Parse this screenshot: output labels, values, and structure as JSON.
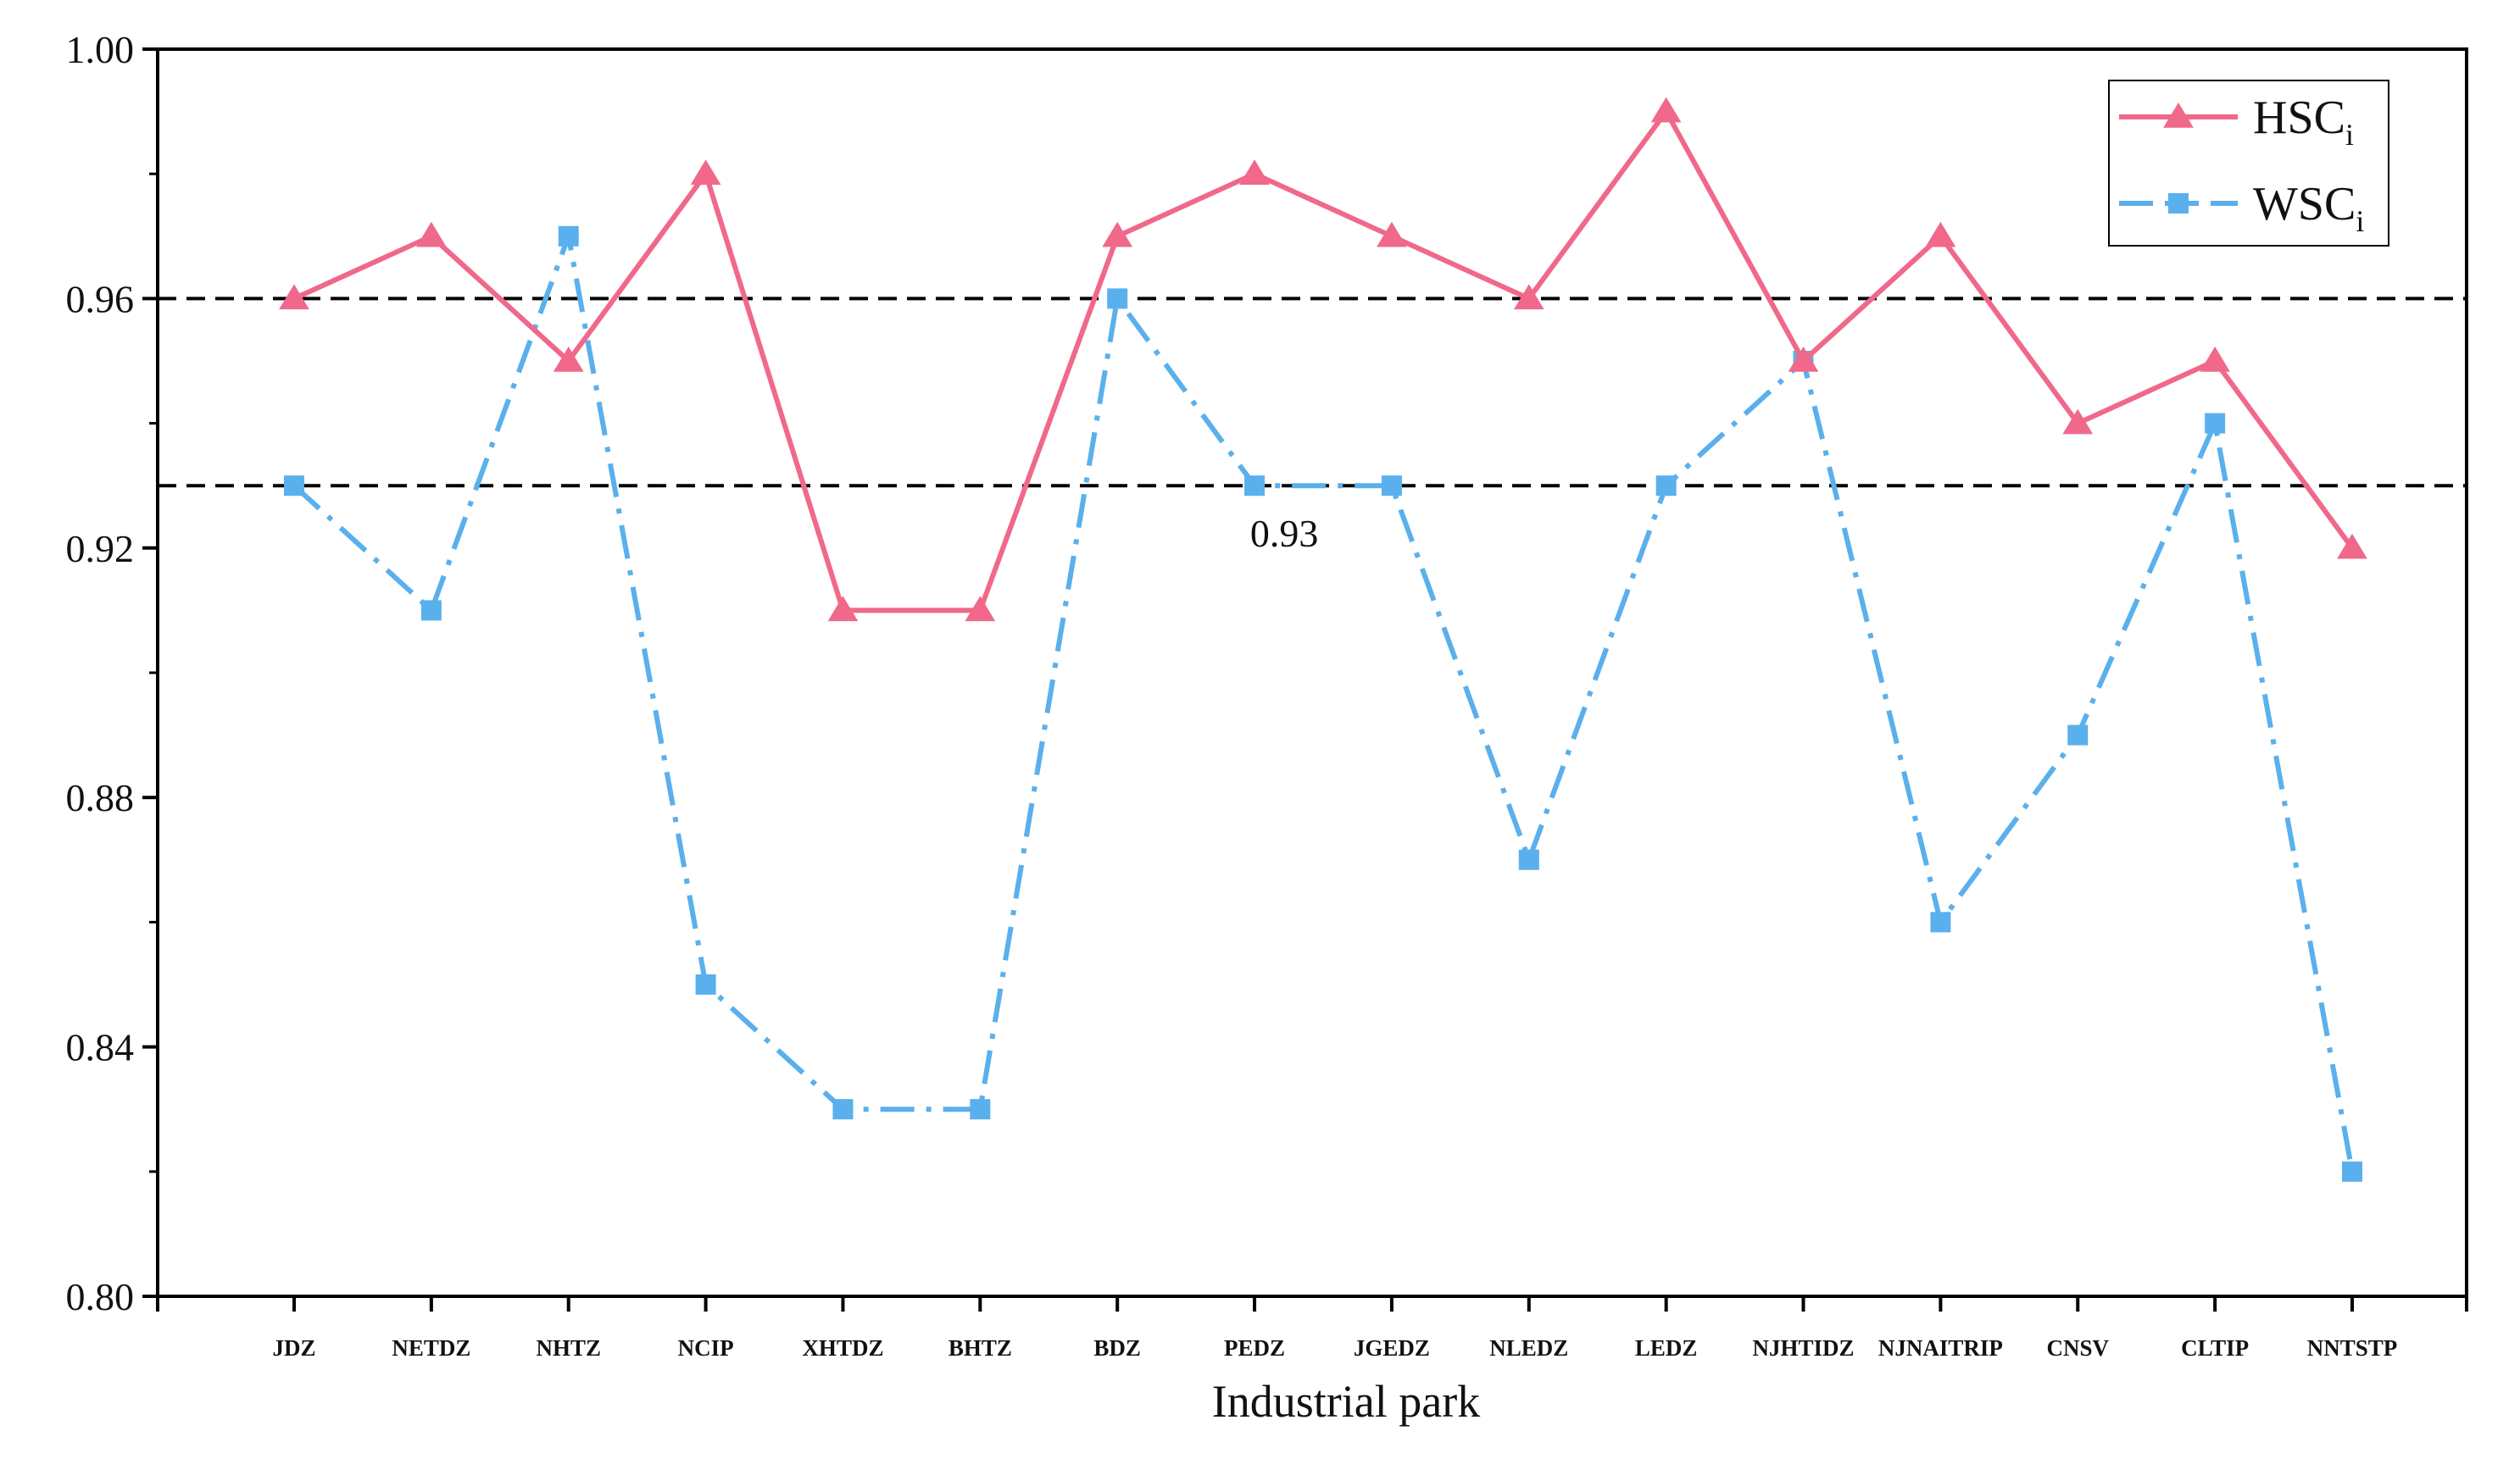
{
  "chart_data": {
    "type": "line",
    "title": "",
    "xlabel": "Industrial park",
    "ylabel": "",
    "categories": [
      "JDZ",
      "NETDZ",
      "NHTZ",
      "NCIP",
      "XHTDZ",
      "BHTZ",
      "BDZ",
      "PEDZ",
      "JGEDZ",
      "NLEDZ",
      "LEDZ",
      "NJHTIDZ",
      "NJNAITRIP",
      "CNSV",
      "CLTIP",
      "NNTSTP"
    ],
    "ylim": [
      0.8,
      1.0
    ],
    "yticks": [
      0.8,
      0.84,
      0.88,
      0.92,
      0.96,
      1.0
    ],
    "ytick_labels": [
      "0.80",
      "0.84",
      "0.88",
      "0.92",
      "0.96",
      "1.00"
    ],
    "grid": false,
    "legend_position": "top-right",
    "series": [
      {
        "name": "HSC",
        "name_subscript": "i",
        "color": "#f0688a",
        "marker": "triangle",
        "line_style": "solid",
        "values": [
          0.96,
          0.97,
          0.95,
          0.98,
          0.91,
          0.91,
          0.97,
          0.98,
          0.97,
          0.96,
          0.99,
          0.95,
          0.97,
          0.94,
          0.95,
          0.92
        ]
      },
      {
        "name": "WSC",
        "name_subscript": "i",
        "color": "#5ab0ec",
        "marker": "square",
        "line_style": "dash-dot",
        "values": [
          0.93,
          0.91,
          0.97,
          0.85,
          0.83,
          0.83,
          0.96,
          0.93,
          0.93,
          0.87,
          0.93,
          0.95,
          0.86,
          0.89,
          0.94,
          0.82
        ]
      }
    ],
    "reference_lines": [
      {
        "y": 0.96,
        "style": "dashed",
        "color": "#000000"
      },
      {
        "y": 0.93,
        "style": "dashed",
        "color": "#000000"
      }
    ],
    "annotations": [
      {
        "text": "0.93",
        "x": "PEDZ",
        "y": 0.93
      }
    ]
  }
}
